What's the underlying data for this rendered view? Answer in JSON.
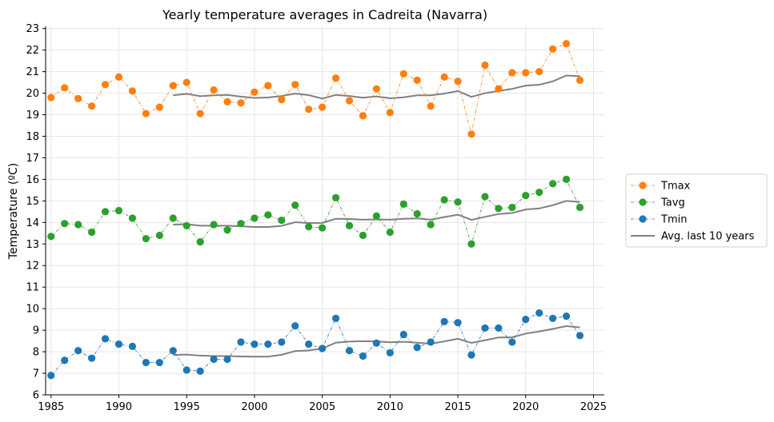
{
  "chart_data": {
    "type": "line",
    "title": "Yearly temperature averages in Cadreita (Navarra)",
    "xlabel": "",
    "ylabel": "Temperature (ºC)",
    "xlim": [
      1984.6,
      2025.8
    ],
    "ylim": [
      6,
      23.1
    ],
    "xticks": [
      1985,
      1990,
      1995,
      2000,
      2005,
      2010,
      2015,
      2020,
      2025
    ],
    "yticks": [
      6,
      7,
      8,
      9,
      10,
      11,
      12,
      13,
      14,
      15,
      16,
      17,
      18,
      19,
      20,
      21,
      22,
      23
    ],
    "grid": true,
    "legend_position": "right",
    "x": [
      1985,
      1986,
      1987,
      1988,
      1989,
      1990,
      1991,
      1992,
      1993,
      1994,
      1995,
      1996,
      1997,
      1998,
      1999,
      2000,
      2001,
      2002,
      2003,
      2004,
      2005,
      2006,
      2007,
      2008,
      2009,
      2010,
      2011,
      2012,
      2013,
      2014,
      2015,
      2016,
      2017,
      2018,
      2019,
      2020,
      2021,
      2022,
      2023,
      2024
    ],
    "series": [
      {
        "name": "Tmax",
        "color": "#ff7f0e",
        "values": [
          19.8,
          20.25,
          19.75,
          19.4,
          20.4,
          20.75,
          20.1,
          19.05,
          19.35,
          20.35,
          20.5,
          19.05,
          20.15,
          19.6,
          19.55,
          20.05,
          20.35,
          19.7,
          20.4,
          19.25,
          19.35,
          20.7,
          19.65,
          18.95,
          20.2,
          19.1,
          20.9,
          20.6,
          19.4,
          20.75,
          20.55,
          18.1,
          21.3,
          20.2,
          20.95,
          20.95,
          21.0,
          22.05,
          22.3,
          20.6
        ]
      },
      {
        "name": "Tavg",
        "color": "#2ca02c",
        "values": [
          13.35,
          13.95,
          13.9,
          13.55,
          14.5,
          14.55,
          14.2,
          13.25,
          13.4,
          14.2,
          13.85,
          13.1,
          13.9,
          13.65,
          13.95,
          14.2,
          14.35,
          14.1,
          14.8,
          13.8,
          13.75,
          15.15,
          13.85,
          13.4,
          14.3,
          13.55,
          14.85,
          14.4,
          13.9,
          15.05,
          14.95,
          13.0,
          15.2,
          14.65,
          14.7,
          15.25,
          15.4,
          15.8,
          16.0,
          14.7
        ]
      },
      {
        "name": "Tmin",
        "color": "#1f77b4",
        "values": [
          6.9,
          7.6,
          8.05,
          7.7,
          8.6,
          8.35,
          8.25,
          7.5,
          7.5,
          8.05,
          7.15,
          7.1,
          7.65,
          7.65,
          8.45,
          8.35,
          8.35,
          8.45,
          9.2,
          8.35,
          8.15,
          9.55,
          8.05,
          7.8,
          8.4,
          7.95,
          8.8,
          8.2,
          8.45,
          9.4,
          9.35,
          7.85,
          9.1,
          9.1,
          8.45,
          9.5,
          9.8,
          9.55,
          9.65,
          8.75
        ]
      }
    ],
    "rolling_avg": {
      "name": "Avg. last 10 years",
      "color": "#808080",
      "x": [
        1994,
        1995,
        1996,
        1997,
        1998,
        1999,
        2000,
        2001,
        2002,
        2003,
        2004,
        2005,
        2006,
        2007,
        2008,
        2009,
        2010,
        2011,
        2012,
        2013,
        2014,
        2015,
        2016,
        2017,
        2018,
        2019,
        2020,
        2021,
        2022,
        2023,
        2024
      ],
      "series": [
        [
          19.9,
          19.97,
          19.86,
          19.9,
          19.92,
          19.84,
          19.78,
          19.8,
          19.87,
          19.98,
          19.91,
          19.75,
          19.92,
          19.87,
          19.79,
          19.85,
          19.76,
          19.81,
          19.9,
          19.9,
          19.98,
          20.1,
          19.83,
          20.0,
          20.1,
          20.2,
          20.35,
          20.39,
          20.55,
          20.82,
          20.79
        ],
        [
          13.9,
          13.92,
          13.85,
          13.85,
          13.85,
          13.82,
          13.79,
          13.79,
          13.84,
          14.01,
          13.97,
          13.98,
          14.17,
          14.16,
          14.13,
          14.14,
          14.13,
          14.17,
          14.19,
          14.13,
          14.25,
          14.36,
          14.12,
          14.26,
          14.39,
          14.44,
          14.6,
          14.65,
          14.8,
          15.0,
          14.95
        ],
        [
          7.85,
          7.87,
          7.82,
          7.8,
          7.8,
          7.78,
          7.77,
          7.77,
          7.86,
          8.03,
          8.06,
          8.15,
          8.42,
          8.47,
          8.49,
          8.48,
          8.44,
          8.46,
          8.42,
          8.37,
          8.48,
          8.6,
          8.41,
          8.53,
          8.66,
          8.67,
          8.84,
          8.94,
          9.06,
          9.19,
          9.13
        ]
      ]
    }
  }
}
